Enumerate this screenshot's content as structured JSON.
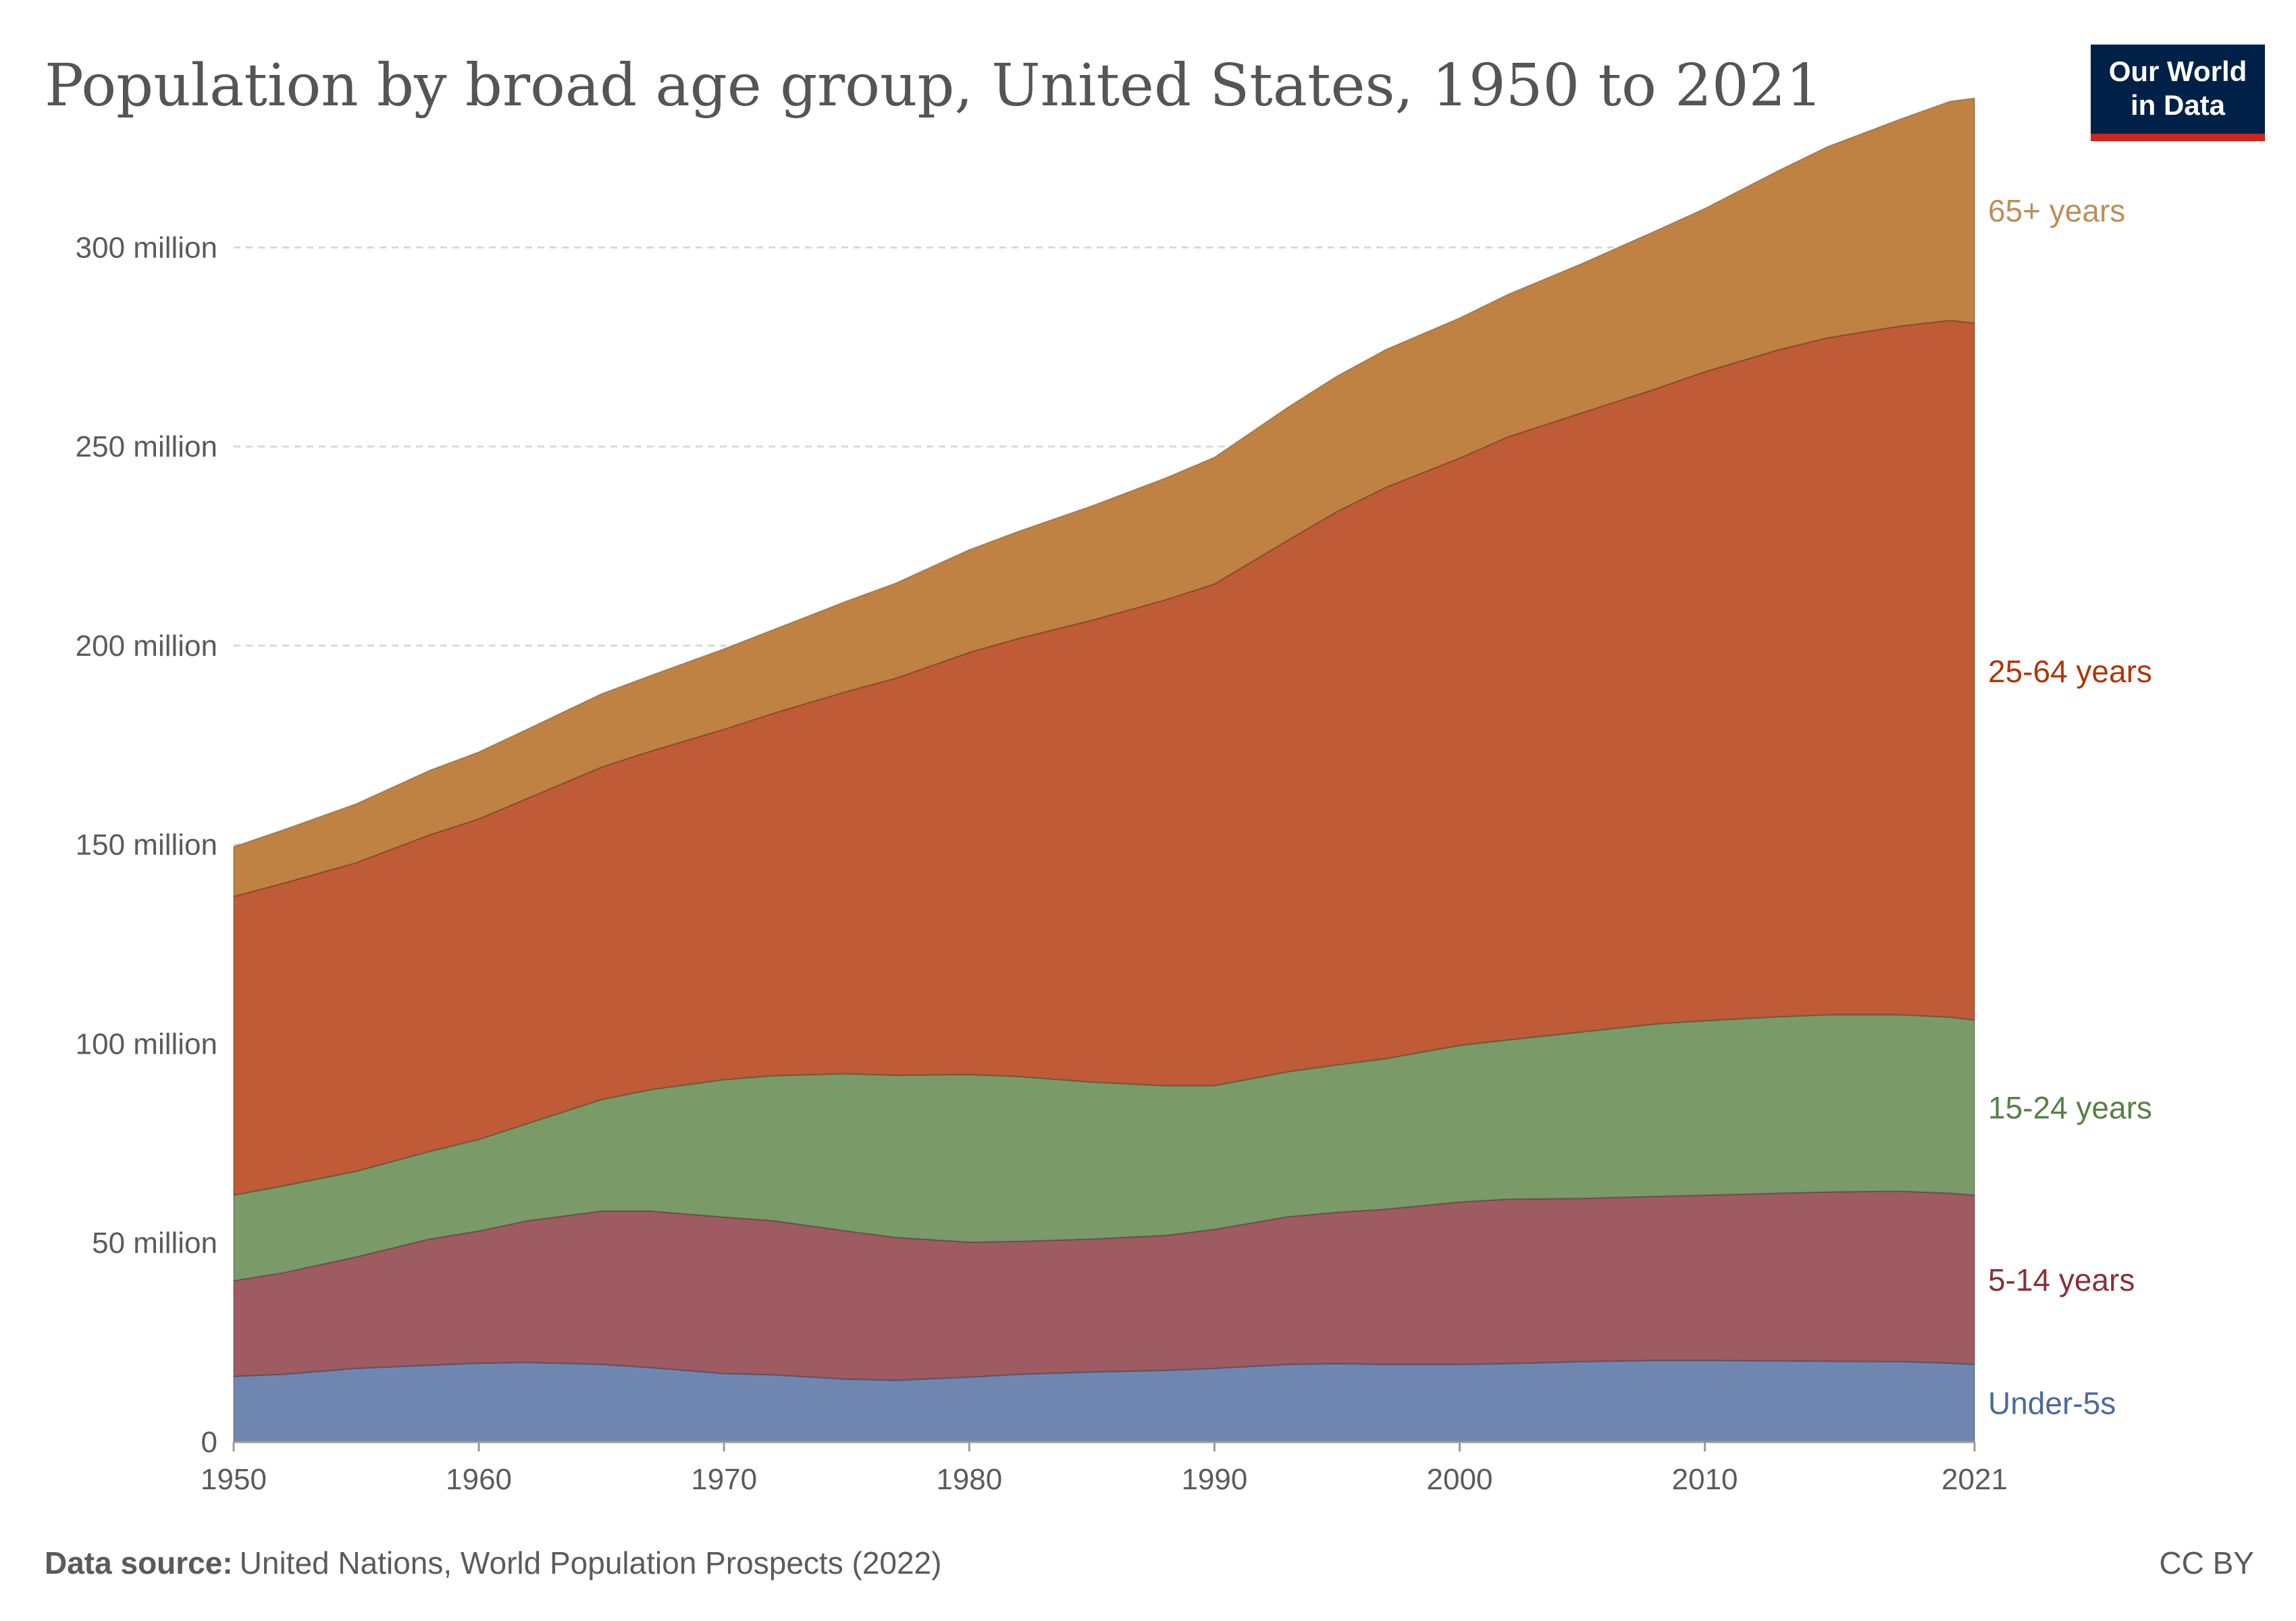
{
  "title": "Population by broad age group, United States, 1950 to 2021",
  "logo": {
    "line1": "Our World",
    "line2": "in Data"
  },
  "footer": {
    "source_label": "Data source:",
    "source_text": "United Nations, World Population Prospects (2022)",
    "license": "CC BY"
  },
  "colors": {
    "under5": "#6f86b0",
    "age5_14": "#9e5b61",
    "age15_24": "#7a9a68",
    "age25_64": "#c05b37",
    "age65": "#bf8242",
    "label_under5": "#4c6a9c",
    "label_5_14": "#883039",
    "label_15_24": "#578145",
    "label_25_64": "#b13507",
    "label_65": "#bc8e5a",
    "logo_bg": "#002147",
    "logo_bar": "#ce261e"
  },
  "chart_data": {
    "type": "area",
    "stacked": true,
    "x": [
      1950,
      1952,
      1955,
      1958,
      1960,
      1962,
      1965,
      1967,
      1970,
      1972,
      1975,
      1977,
      1980,
      1982,
      1985,
      1988,
      1990,
      1993,
      1995,
      1997,
      2000,
      2002,
      2005,
      2008,
      2010,
      2013,
      2015,
      2018,
      2020,
      2021
    ],
    "xlim": [
      1950,
      2021
    ],
    "ylim": [
      0,
      335000000
    ],
    "y_ticks": [
      {
        "value": 0,
        "label": "0"
      },
      {
        "value": 50000000,
        "label": "50 million"
      },
      {
        "value": 100000000,
        "label": "100 million"
      },
      {
        "value": 150000000,
        "label": "150 million"
      },
      {
        "value": 200000000,
        "label": "200 million"
      },
      {
        "value": 250000000,
        "label": "250 million"
      },
      {
        "value": 300000000,
        "label": "300 million"
      }
    ],
    "x_ticks": [
      {
        "value": 1950,
        "label": "1950"
      },
      {
        "value": 1960,
        "label": "1960"
      },
      {
        "value": 1970,
        "label": "1970"
      },
      {
        "value": 1980,
        "label": "1980"
      },
      {
        "value": 1990,
        "label": "1990"
      },
      {
        "value": 2000,
        "label": "2000"
      },
      {
        "value": 2010,
        "label": "2010"
      },
      {
        "value": 2021,
        "label": "2021"
      }
    ],
    "grid": true,
    "legend": "inline-right",
    "series": [
      {
        "name": "Under-5s",
        "color_key": "under5",
        "label_color_key": "label_under5",
        "values": [
          16.5,
          17.0,
          18.5,
          19.3,
          19.8,
          20.0,
          19.5,
          18.7,
          17.2,
          16.9,
          15.8,
          15.5,
          16.3,
          17.0,
          17.6,
          18.0,
          18.5,
          19.5,
          19.7,
          19.5,
          19.5,
          19.7,
          20.2,
          20.5,
          20.5,
          20.4,
          20.3,
          20.2,
          19.8,
          19.5
        ]
      },
      {
        "name": "5-14 years",
        "color_key": "age5_14",
        "label_color_key": "label_5_14",
        "values": [
          24.0,
          25.5,
          28.0,
          31.7,
          33.2,
          35.6,
          38.5,
          39.3,
          39.3,
          38.7,
          37.2,
          35.9,
          33.9,
          33.4,
          33.4,
          33.9,
          34.9,
          37.1,
          38.0,
          39.0,
          40.8,
          41.3,
          41.0,
          41.2,
          41.5,
          42.1,
          42.5,
          42.8,
          42.7,
          42.5
        ]
      },
      {
        "name": "15-24 years",
        "color_key": "age15_24",
        "label_color_key": "label_15_24",
        "values": [
          21.5,
          21.8,
          21.5,
          22.0,
          23.0,
          24.4,
          28.0,
          30.5,
          34.5,
          36.4,
          39.5,
          40.7,
          42.1,
          41.4,
          39.4,
          37.6,
          36.1,
          36.4,
          37.0,
          37.8,
          39.3,
          40.0,
          41.8,
          43.3,
          43.8,
          44.3,
          44.5,
          44.3,
          44.2,
          44.0
        ]
      },
      {
        "name": "25-64 years",
        "color_key": "age25_64",
        "label_color_key": "label_25_64",
        "values": [
          75.0,
          76.0,
          77.5,
          79.5,
          80.5,
          81.7,
          83.5,
          85.0,
          88.0,
          91.0,
          96.0,
          99.7,
          106.0,
          110.0,
          116.0,
          122.0,
          126.0,
          133.5,
          139.0,
          143.5,
          147.5,
          151.5,
          155.5,
          159.5,
          163.0,
          167.5,
          170.0,
          173.0,
          175.0,
          175.0
        ]
      },
      {
        "name": "65+ years",
        "color_key": "age65",
        "label_color_key": "label_65",
        "values": [
          12.5,
          13.4,
          14.8,
          16.2,
          16.8,
          17.4,
          18.4,
          19.0,
          20.2,
          21.0,
          22.7,
          23.9,
          25.8,
          26.9,
          28.7,
          30.6,
          31.8,
          33.4,
          34.0,
          34.6,
          35.2,
          35.8,
          37.5,
          39.7,
          41.0,
          45.0,
          48.0,
          52.0,
          55.0,
          56.5
        ]
      }
    ]
  }
}
